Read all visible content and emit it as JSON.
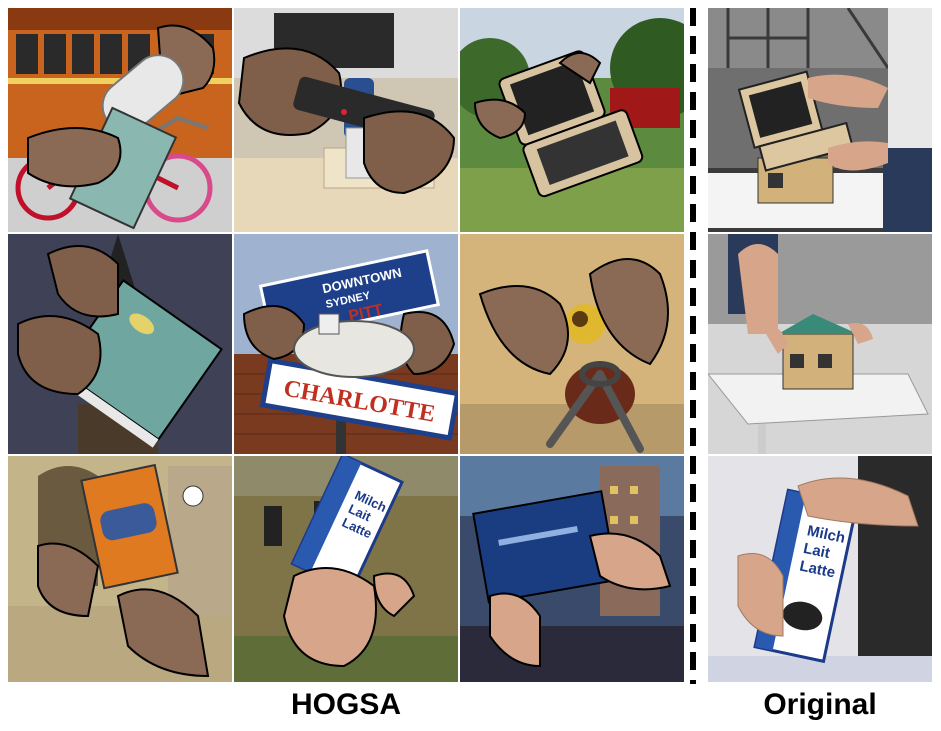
{
  "captions": {
    "left": "HOGSA",
    "right": "Original"
  },
  "tile_text": {
    "downtown": "DOWNTOWN",
    "sydney": "SYDNEY",
    "charlotte": "CHARLOTTE",
    "pitt": "PITT",
    "milch": "Milch",
    "lait": "Lait",
    "latte": "Latte"
  }
}
